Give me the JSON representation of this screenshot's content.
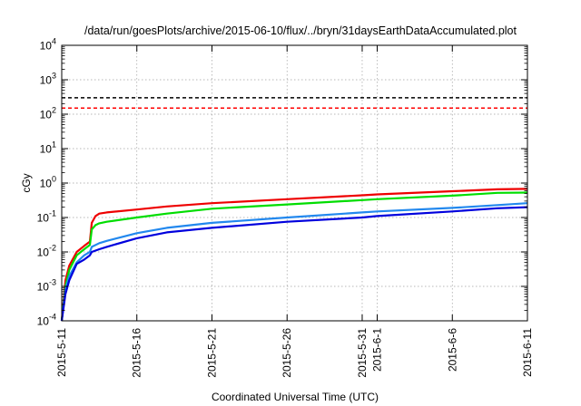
{
  "chart_data": {
    "type": "line",
    "title": "/data/run/goesPlots/archive/2015-06-10/flux/../bryn/31daysEarthDataAccumulated.plot",
    "xlabel": "Coordinated Universal Time (UTC)",
    "ylabel": "cGy",
    "x_range": [
      "2015-05-11",
      "2015-06-11"
    ],
    "y_scale": "log",
    "y_range": [
      0.0001,
      10000
    ],
    "grid": true,
    "x_ticks": [
      "2015-5-11",
      "2015-5-16",
      "2015-5-21",
      "2015-5-26",
      "2015-5-31",
      "2015-6-1",
      "2015-6-6",
      "2015-6-11"
    ],
    "x_tick_dates": [
      "2015-05-11",
      "2015-05-16",
      "2015-05-21",
      "2015-05-26",
      "2015-05-31",
      "2015-06-01",
      "2015-06-06",
      "2015-06-11"
    ],
    "y_ticks": [
      {
        "base": "10",
        "exp": "-4",
        "value": 0.0001
      },
      {
        "base": "10",
        "exp": "-3",
        "value": 0.001
      },
      {
        "base": "10",
        "exp": "-2",
        "value": 0.01
      },
      {
        "base": "10",
        "exp": "-1",
        "value": 0.1
      },
      {
        "base": "10",
        "exp": "0",
        "value": 1
      },
      {
        "base": "10",
        "exp": "1",
        "value": 10
      },
      {
        "base": "10",
        "exp": "2",
        "value": 100
      },
      {
        "base": "10",
        "exp": "3",
        "value": 1000
      },
      {
        "base": "10",
        "exp": "4",
        "value": 10000
      }
    ],
    "thresholds": [
      {
        "value": 300,
        "color": "#000000",
        "style": "dashed"
      },
      {
        "value": 150,
        "color": "#ff0000",
        "style": "dashed"
      }
    ],
    "series": [
      {
        "color": "#ee0000",
        "x": [
          "2015-05-11T00:00",
          "2015-05-11T06:00",
          "2015-05-11T12:00",
          "2015-05-12T00:00",
          "2015-05-12T12:00",
          "2015-05-12T21:00",
          "2015-05-13T00:00",
          "2015-05-13T06:00",
          "2015-05-13T12:00",
          "2015-05-14T00:00",
          "2015-05-16T00:00",
          "2015-05-18T00:00",
          "2015-05-21T00:00",
          "2015-05-26T00:00",
          "2015-05-31T00:00",
          "2015-06-01T00:00",
          "2015-06-06T00:00",
          "2015-06-09T00:00",
          "2015-06-11T00:00"
        ],
        "y": [
          0.0001,
          0.0015,
          0.004,
          0.01,
          0.015,
          0.02,
          0.07,
          0.11,
          0.13,
          0.14,
          0.17,
          0.21,
          0.26,
          0.34,
          0.44,
          0.47,
          0.58,
          0.66,
          0.68
        ]
      },
      {
        "color": "#00dd00",
        "x": [
          "2015-05-11T00:00",
          "2015-05-11T06:00",
          "2015-05-11T12:00",
          "2015-05-12T00:00",
          "2015-05-12T12:00",
          "2015-05-12T21:00",
          "2015-05-13T00:00",
          "2015-05-13T06:00",
          "2015-05-13T12:00",
          "2015-05-14T00:00",
          "2015-05-16T00:00",
          "2015-05-18T00:00",
          "2015-05-21T00:00",
          "2015-05-26T00:00",
          "2015-05-31T00:00",
          "2015-06-01T00:00",
          "2015-06-06T00:00",
          "2015-06-09T00:00",
          "2015-06-11T00:00"
        ],
        "y": [
          0.0001,
          0.001,
          0.003,
          0.008,
          0.012,
          0.016,
          0.045,
          0.06,
          0.068,
          0.075,
          0.1,
          0.13,
          0.18,
          0.24,
          0.32,
          0.34,
          0.43,
          0.52,
          0.53
        ]
      },
      {
        "color": "#2288ee",
        "x": [
          "2015-05-11T00:00",
          "2015-05-11T06:00",
          "2015-05-11T12:00",
          "2015-05-12T00:00",
          "2015-05-12T12:00",
          "2015-05-12T21:00",
          "2015-05-13T00:00",
          "2015-05-13T12:00",
          "2015-05-14T00:00",
          "2015-05-16T00:00",
          "2015-05-18T00:00",
          "2015-05-21T00:00",
          "2015-05-26T00:00",
          "2015-05-31T00:00",
          "2015-06-01T00:00",
          "2015-06-06T00:00",
          "2015-06-09T00:00",
          "2015-06-11T00:00"
        ],
        "y": [
          0.0001,
          0.0008,
          0.002,
          0.005,
          0.008,
          0.01,
          0.014,
          0.018,
          0.021,
          0.035,
          0.05,
          0.07,
          0.1,
          0.14,
          0.15,
          0.19,
          0.23,
          0.26
        ]
      },
      {
        "color": "#0000dd",
        "x": [
          "2015-05-11T00:00",
          "2015-05-11T06:00",
          "2015-05-11T12:00",
          "2015-05-12T00:00",
          "2015-05-12T12:00",
          "2015-05-12T21:00",
          "2015-05-13T00:00",
          "2015-05-13T12:00",
          "2015-05-14T00:00",
          "2015-05-16T00:00",
          "2015-05-18T00:00",
          "2015-05-21T00:00",
          "2015-05-26T00:00",
          "2015-05-31T00:00",
          "2015-06-01T00:00",
          "2015-06-06T00:00",
          "2015-06-09T00:00",
          "2015-06-11T00:00"
        ],
        "y": [
          0.0001,
          0.0006,
          0.0015,
          0.0045,
          0.006,
          0.008,
          0.01,
          0.012,
          0.014,
          0.025,
          0.037,
          0.05,
          0.075,
          0.1,
          0.11,
          0.15,
          0.185,
          0.2
        ]
      }
    ]
  }
}
